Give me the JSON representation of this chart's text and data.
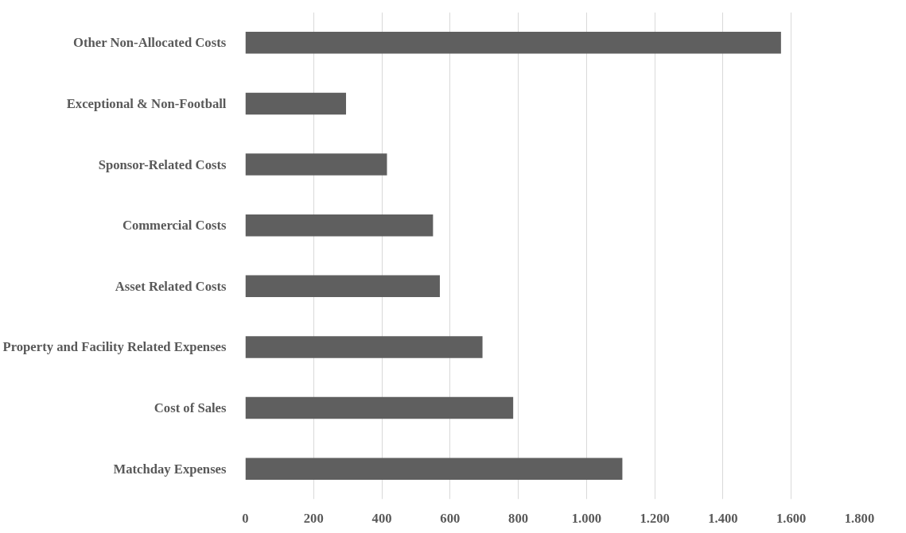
{
  "chart_data": {
    "type": "bar",
    "orientation": "horizontal",
    "categories": [
      "Other Non-Allocated Costs",
      "Exceptional & Non-Football",
      "Sponsor-Related Costs",
      "Commercial Costs",
      "Asset Related Costs",
      "Property and Facility Related Expenses",
      "Cost of Sales",
      "Matchday Expenses"
    ],
    "values": [
      1570,
      295,
      415,
      550,
      570,
      695,
      785,
      1105
    ],
    "color": "#5f5f5f",
    "xlim": [
      0,
      1800
    ],
    "xticks": [
      0,
      200,
      400,
      600,
      800,
      {
        "value": 1000,
        "label": "1.000"
      },
      {
        "value": 1200,
        "label": "1.200"
      },
      {
        "value": 1400,
        "label": "1.400"
      },
      {
        "value": 1600,
        "label": "1.600"
      },
      {
        "value": 1800,
        "label": "1.800"
      }
    ],
    "grid": "x"
  }
}
